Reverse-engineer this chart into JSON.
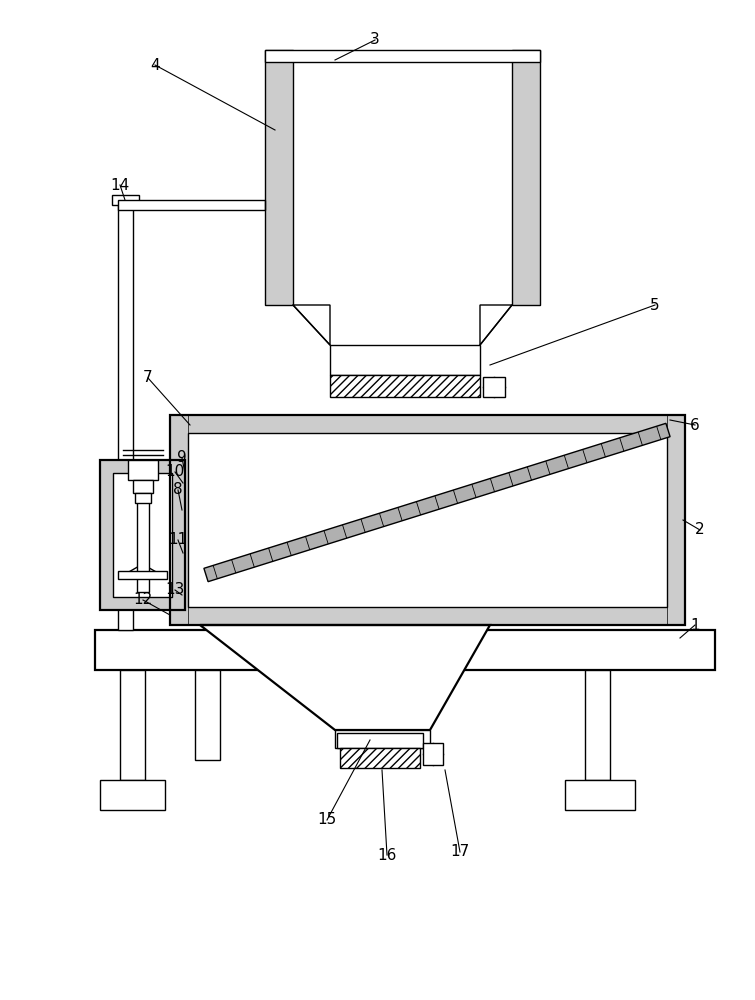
{
  "bg_color": "#ffffff",
  "fig_width": 7.55,
  "fig_height": 10.0,
  "lw": 1.0,
  "lw2": 1.6,
  "dot_color": "#cccccc",
  "screen_color": "#aaaaaa"
}
